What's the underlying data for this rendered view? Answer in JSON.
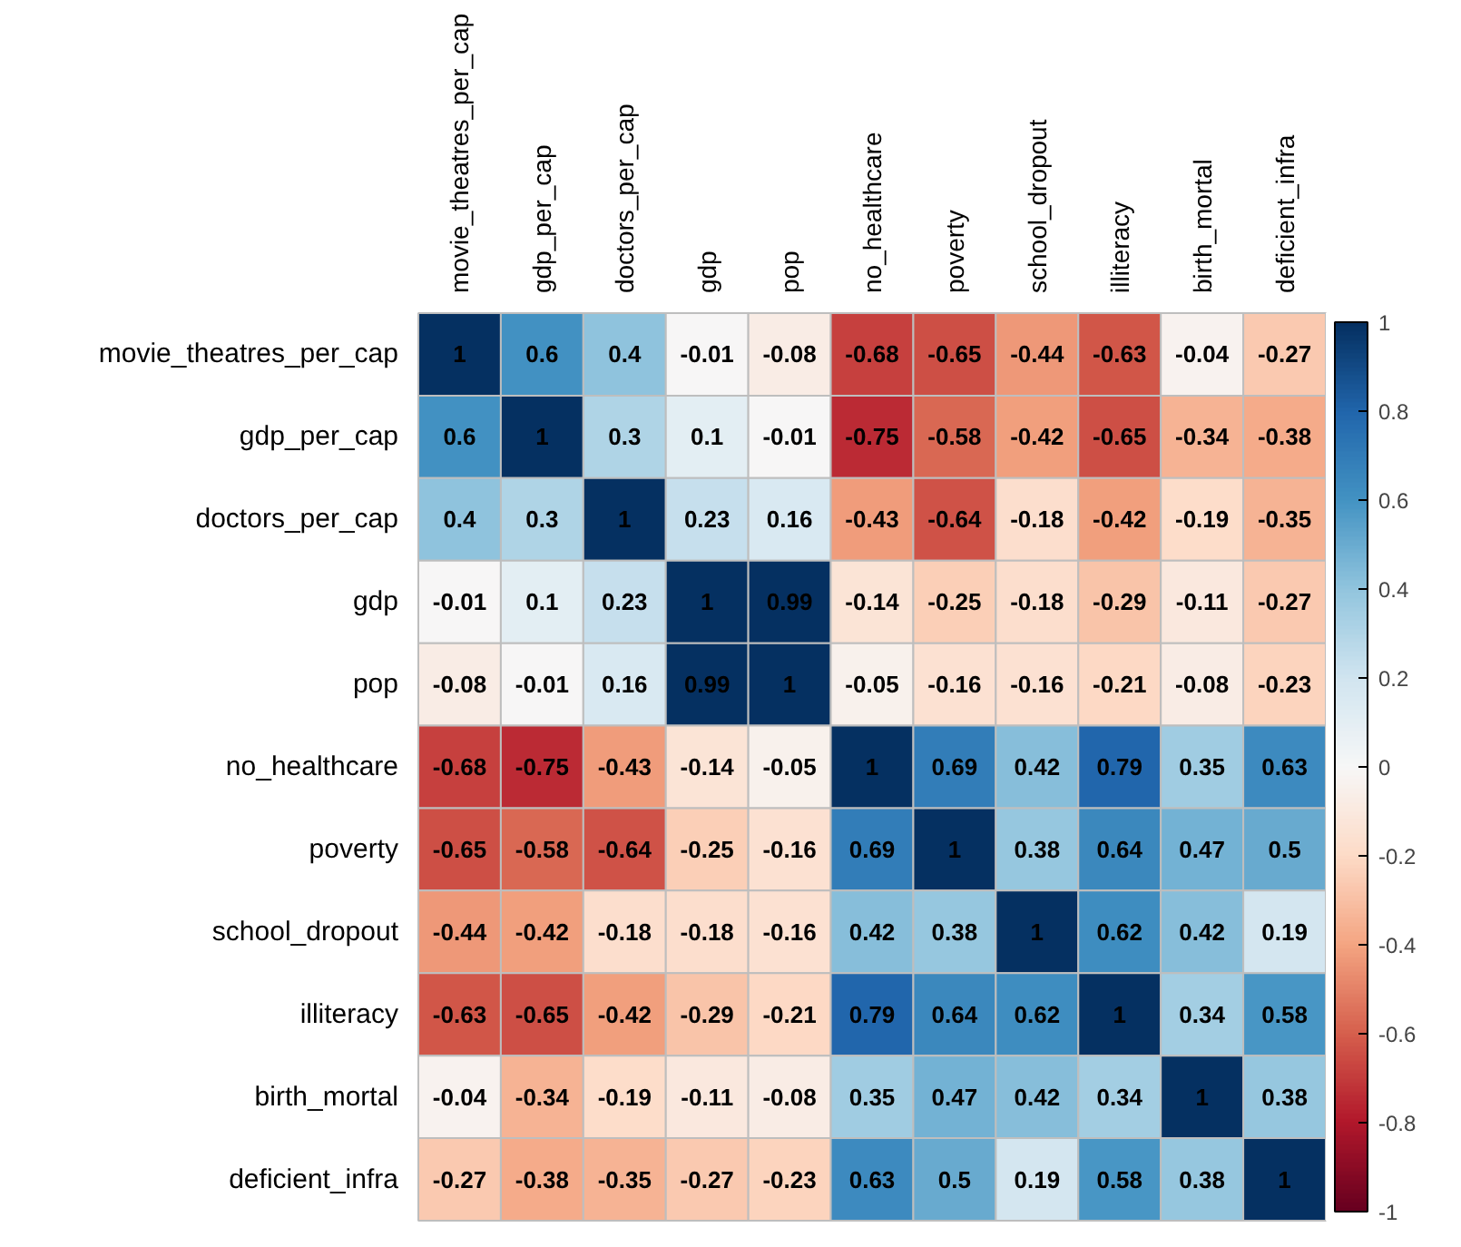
{
  "chart_data": {
    "type": "heatmap",
    "categories": [
      "movie_theatres_per_cap",
      "gdp_per_cap",
      "doctors_per_cap",
      "gdp",
      "pop",
      "no_healthcare",
      "poverty",
      "school_dropout",
      "illiteracy",
      "birth_mortal",
      "deficient_infra"
    ],
    "y_categories": [
      "movie_theatres_per_cap",
      "gdp_per_cap",
      "doctors_per_cap",
      "gdp",
      "pop",
      "no_healthcare",
      "poverty",
      "school_dropout",
      "illiteracy",
      "birth_mortal",
      "deficient_infra"
    ],
    "cells": [
      [
        1,
        0.6,
        0.4,
        -0.01,
        -0.08,
        -0.68,
        -0.65,
        -0.44,
        -0.63,
        -0.04,
        -0.27
      ],
      [
        0.6,
        1,
        0.3,
        0.1,
        -0.01,
        -0.75,
        -0.58,
        -0.42,
        -0.65,
        -0.34,
        -0.38
      ],
      [
        0.4,
        0.3,
        1,
        0.23,
        0.16,
        -0.43,
        -0.64,
        -0.18,
        -0.42,
        -0.19,
        -0.35
      ],
      [
        -0.01,
        0.1,
        0.23,
        1,
        0.99,
        -0.14,
        -0.25,
        -0.18,
        -0.29,
        -0.11,
        -0.27
      ],
      [
        -0.08,
        -0.01,
        0.16,
        0.99,
        1,
        -0.05,
        -0.16,
        -0.16,
        -0.21,
        -0.08,
        -0.23
      ],
      [
        -0.68,
        -0.75,
        -0.43,
        -0.14,
        -0.05,
        1,
        0.69,
        0.42,
        0.79,
        0.35,
        0.63
      ],
      [
        -0.65,
        -0.58,
        -0.64,
        -0.25,
        -0.16,
        0.69,
        1,
        0.38,
        0.64,
        0.47,
        0.5
      ],
      [
        -0.44,
        -0.42,
        -0.18,
        -0.18,
        -0.16,
        0.42,
        0.38,
        1,
        0.62,
        0.42,
        0.19
      ],
      [
        -0.63,
        -0.65,
        -0.42,
        -0.29,
        -0.21,
        0.79,
        0.64,
        0.62,
        1,
        0.34,
        0.58
      ],
      [
        -0.04,
        -0.34,
        -0.19,
        -0.11,
        -0.08,
        0.35,
        0.47,
        0.42,
        0.34,
        1,
        0.38
      ],
      [
        -0.27,
        -0.38,
        -0.35,
        -0.27,
        -0.23,
        0.63,
        0.5,
        0.19,
        0.58,
        0.38,
        1
      ]
    ],
    "clim": [
      -1,
      1
    ],
    "cticks": [
      -1,
      -0.8,
      -0.6,
      -0.4,
      -0.2,
      0,
      0.2,
      0.4,
      0.6,
      0.8,
      1
    ],
    "data_labels": true
  }
}
